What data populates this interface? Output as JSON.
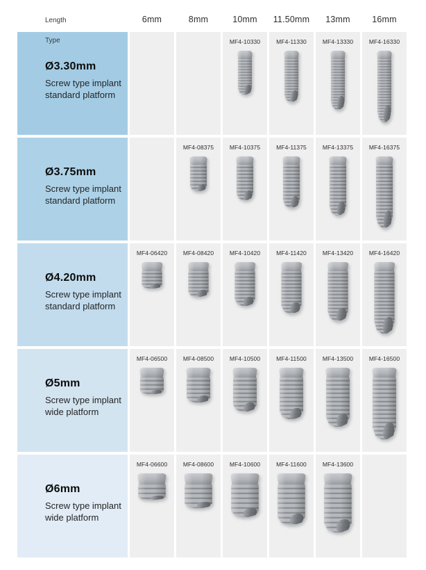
{
  "header": {
    "length_label": "Length",
    "type_label": "Type",
    "columns": [
      "6mm",
      "8mm",
      "10mm",
      "11.50mm",
      "13mm",
      "16mm"
    ]
  },
  "colors": {
    "row_label_backgrounds": [
      "#a3cce4",
      "#add2e8",
      "#c2dcee",
      "#d3e4f1",
      "#e2ecf6"
    ],
    "cell_background": "#efefef"
  },
  "rows": [
    {
      "diameter": "Ø3.30mm",
      "description": "Screw type implant standard platform",
      "cells": [
        null,
        null,
        "MF4-10330",
        "MF4-11330",
        "MF4-13330",
        "MF4-16330"
      ]
    },
    {
      "diameter": "Ø3.75mm",
      "description": "Screw type implant standard platform",
      "cells": [
        null,
        "MF4-08375",
        "MF4-10375",
        "MF4-11375",
        "MF4-13375",
        "MF4-16375"
      ]
    },
    {
      "diameter": "Ø4.20mm",
      "description": "Screw type implant standard platform",
      "cells": [
        "MF4-06420",
        "MF4-08420",
        "MF4-10420",
        "MF4-11420",
        "MF4-13420",
        "MF4-16420"
      ]
    },
    {
      "diameter": "Ø5mm",
      "description": "Screw type implant wide platform",
      "cells": [
        "MF4-06500",
        "MF4-08500",
        "MF4-10500",
        "MF4-11500",
        "MF4-13500",
        "MF4-16500"
      ]
    },
    {
      "diameter": "Ø6mm",
      "description": "Screw type implant wide platform",
      "cells": [
        "MF4-06600",
        "MF4-08600",
        "MF4-10600",
        "MF4-11600",
        "MF4-13600",
        null
      ]
    }
  ]
}
